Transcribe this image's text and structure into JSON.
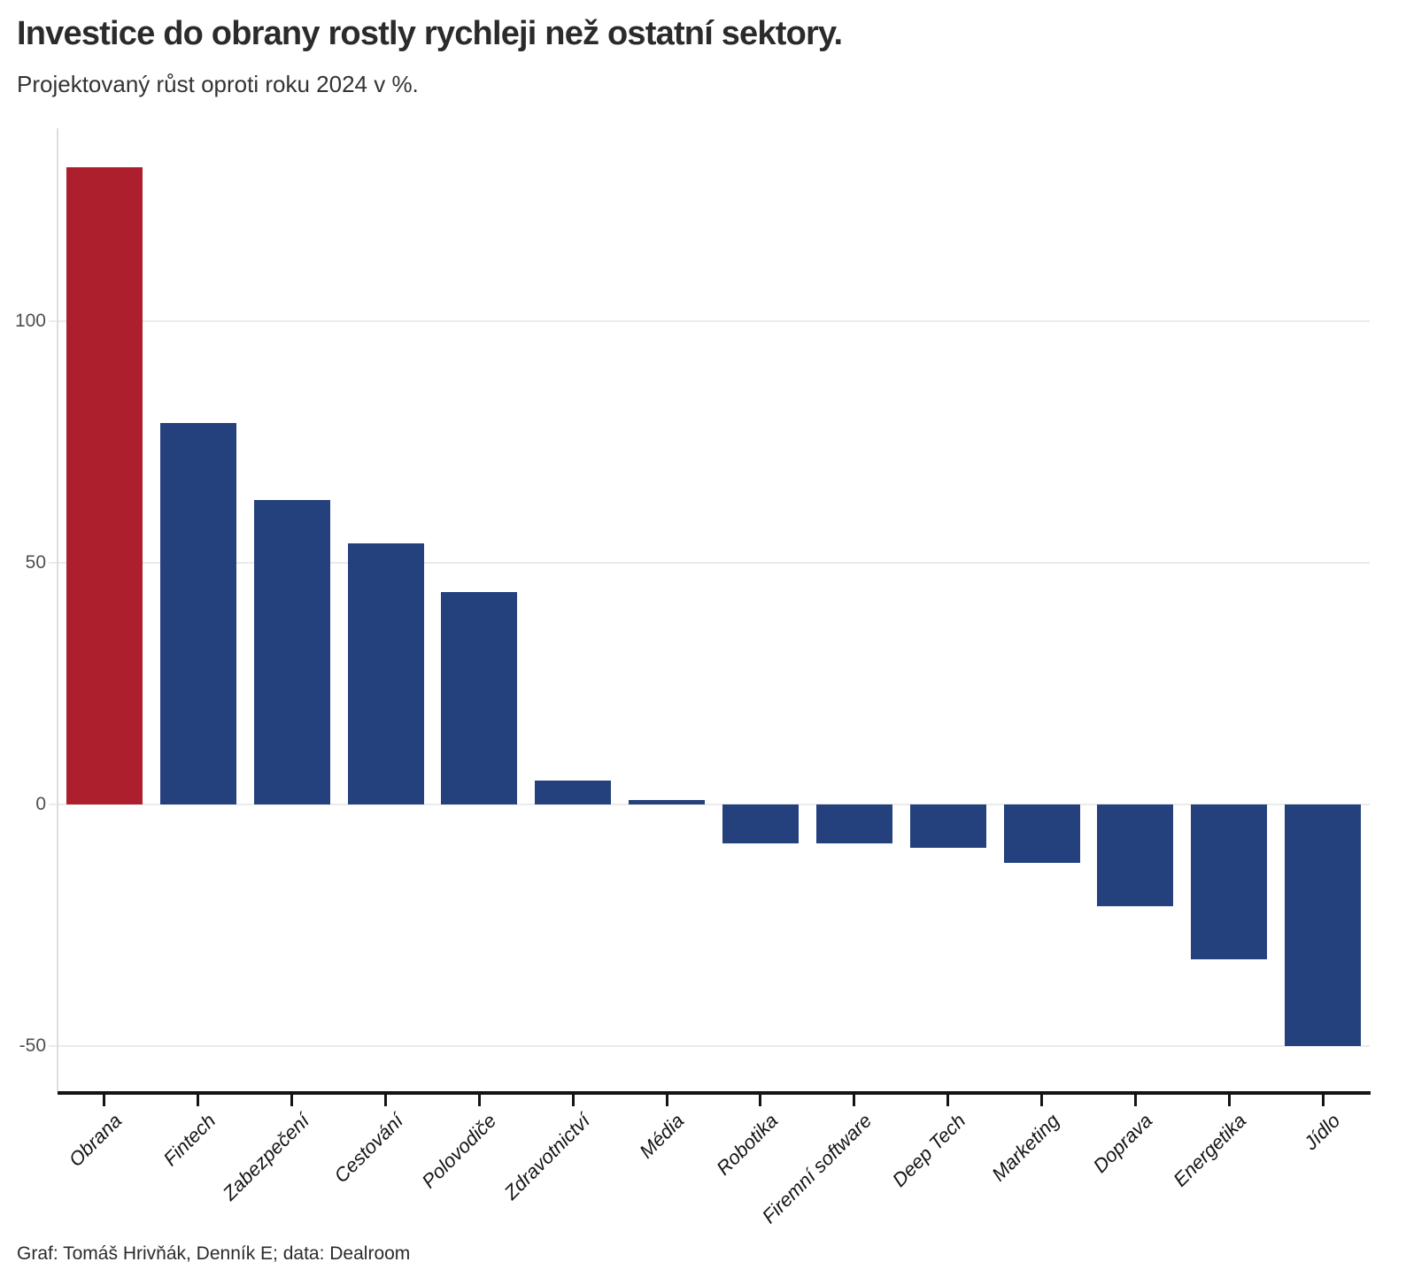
{
  "header": {
    "title": "Investice do obrany rostly rychleji než ostatní sektory.",
    "subtitle": "Projektovaný růst oproti roku 2024 v %."
  },
  "footer": {
    "credit": "Graf: Tomáš Hrivňák, Denník E; data: Dealroom"
  },
  "chart_data": {
    "type": "bar",
    "title": "Investice do obrany rostly rychleji než ostatní sektory.",
    "subtitle": "Projektovaný růst oproti roku 2024 v %.",
    "categories": [
      "Obrana",
      "Fintech",
      "Zabezpečení",
      "Cestování",
      "Polovodiče",
      "Zdravotnictví",
      "Média",
      "Robotika",
      "Firemní software",
      "Deep Tech",
      "Marketing",
      "Doprava",
      "Energetika",
      "Jídlo"
    ],
    "values": [
      132,
      79,
      63,
      54,
      44,
      5,
      1,
      -8,
      -8,
      -9,
      -12,
      -21,
      -32,
      -50
    ],
    "highlight_index": 0,
    "colors": {
      "highlight": "#ad1f2d",
      "default": "#24417e"
    },
    "yticks": [
      100,
      50,
      0,
      -50
    ],
    "ytick_labels": [
      "100",
      "50",
      "0",
      "-50"
    ],
    "ylim": [
      -59.3,
      140
    ],
    "grid": true,
    "legend": false,
    "xlabel": "",
    "ylabel": ""
  }
}
